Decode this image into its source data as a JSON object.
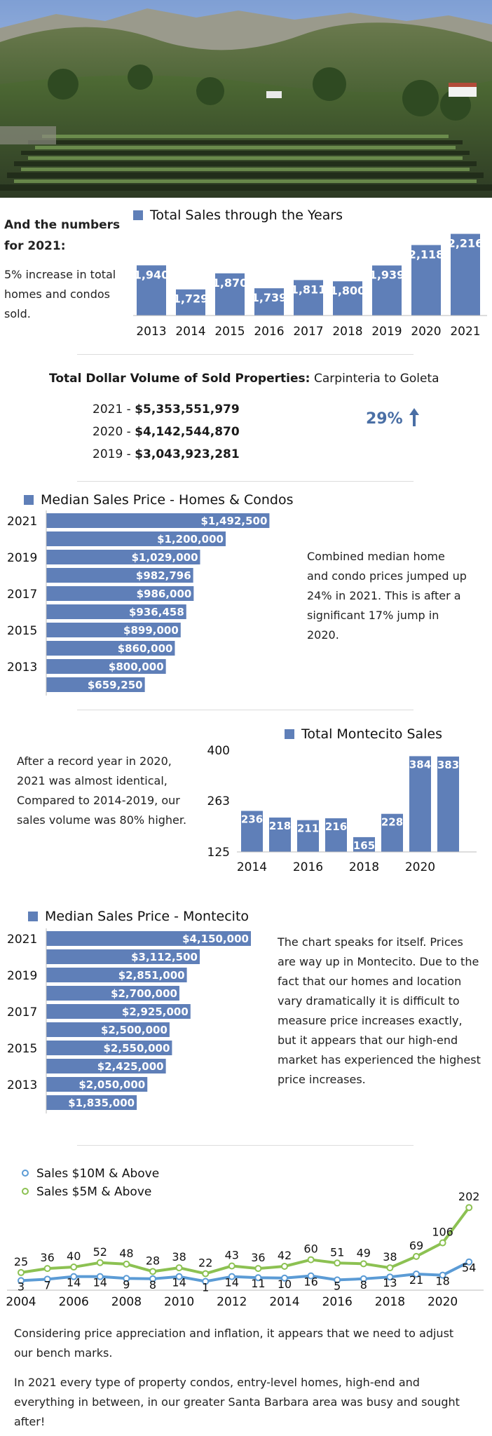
{
  "colors": {
    "bar": "#5f7fb8",
    "green": "#8cc152",
    "blue": "#5b9bd5",
    "up_arrow": "#4a6fa5"
  },
  "intro": {
    "heading": "And the numbers for 2021:",
    "body": "5% increase in total homes and condos sold."
  },
  "volume": {
    "title": "Total Dollar Volume of Sold Properties:",
    "rows": [
      {
        "year": "2021",
        "amount": "$5,353,551,979"
      },
      {
        "year": "2020",
        "amount": "$4,142,544,870"
      },
      {
        "year": "2019",
        "amount": "$3,043,923,281"
      }
    ],
    "region": "Carpinteria to Goleta",
    "change": "29%",
    "change_icon": "arrow-up-icon"
  },
  "median_note": "Combined median home and condo prices jumped up 24% in 2021. This is after a significant 17% jump in 2020.",
  "montecito_note": "After a record year in 2020, 2021 was almost identical, Compared to 2014-2019, our sales volume was 80% higher.",
  "montecito_median_note": "The chart speaks for itself. Prices are way up in Montecito.  Due to the fact that our homes and location vary dramatically it is difficult to measure price increases exactly, but it appears that our high-end market has experienced the highest price increases.",
  "footer": {
    "p1": "Considering price appreciation and inflation, it appears that we need to adjust our bench marks.",
    "p2": "In 2021 every type of property condos, entry-level homes, high-end and everything in between, in our greater Santa Barbara area was busy and sought after!"
  },
  "chart_data": [
    {
      "type": "bar",
      "title": "Total Sales through the Years",
      "categories": [
        "2013",
        "2014",
        "2015",
        "2016",
        "2017",
        "2018",
        "2019",
        "2020",
        "2021"
      ],
      "series": [
        {
          "name": "Total Sales through the Years",
          "values": [
            1940,
            1729,
            1870,
            1739,
            1811,
            1800,
            1939,
            2118,
            2216
          ]
        }
      ],
      "data_labels": [
        "1,940",
        "1,729",
        "1,870",
        "1,739",
        "1,811",
        "1,800",
        "1,939",
        "2,118",
        "2,216"
      ],
      "ylim": [
        1500,
        2250
      ]
    },
    {
      "type": "bar",
      "orientation": "horizontal",
      "title": "Median Sales Price - Homes & Condos",
      "categories": [
        "2021",
        "2020",
        "2019",
        "2018",
        "2017",
        "2016",
        "2015",
        "2014",
        "2013",
        "2012"
      ],
      "tick_labels": [
        "2021",
        "2019",
        "2017",
        "2015",
        "2013"
      ],
      "values": [
        1492500,
        1200000,
        1029000,
        982796,
        986000,
        936458,
        899000,
        860000,
        800000,
        659250
      ],
      "data_labels": [
        "$1,492,500",
        "$1,200,000",
        "$1,029,000",
        "$982,796",
        "$986,000",
        "$936,458",
        "$899,000",
        "$860,000",
        "$800,000",
        "$659,250"
      ],
      "xlim": [
        0,
        1500000
      ]
    },
    {
      "type": "bar",
      "title": "Total Montecito Sales",
      "categories": [
        "2014",
        "2015",
        "2016",
        "2017",
        "2018",
        "2019",
        "2020",
        "2021"
      ],
      "tick_labels": [
        "2014",
        "2016",
        "2018",
        "2020"
      ],
      "series": [
        {
          "name": "Total Montecito Sales",
          "values": [
            236,
            218,
            211,
            216,
            165,
            228,
            384,
            383
          ]
        }
      ],
      "y_ticks": [
        "400",
        "263",
        "125"
      ],
      "ylim": [
        125,
        400
      ]
    },
    {
      "type": "bar",
      "orientation": "horizontal",
      "title": "Median Sales Price - Montecito",
      "categories": [
        "2021",
        "2020",
        "2019",
        "2018",
        "2017",
        "2016",
        "2015",
        "2014",
        "2013",
        "2012"
      ],
      "tick_labels": [
        "2021",
        "2019",
        "2017",
        "2015",
        "2013"
      ],
      "values": [
        4150000,
        3112500,
        2851000,
        2700000,
        2925000,
        2500000,
        2550000,
        2425000,
        2050000,
        1835000
      ],
      "data_labels": [
        "$4,150,000",
        "$3,112,500",
        "$2,851,000",
        "$2,700,000",
        "$2,925,000",
        "$2,500,000",
        "$2,550,000",
        "$2,425,000",
        "$2,050,000",
        "$1,835,000"
      ],
      "xlim": [
        0,
        4150000
      ]
    },
    {
      "type": "line",
      "x": [
        2004,
        2005,
        2006,
        2007,
        2008,
        2009,
        2010,
        2011,
        2012,
        2013,
        2014,
        2015,
        2016,
        2017,
        2018,
        2019,
        2020,
        2021
      ],
      "tick_labels": [
        "2004",
        "2006",
        "2008",
        "2010",
        "2012",
        "2014",
        "2016",
        "2018",
        "2020"
      ],
      "series": [
        {
          "name": "Sales $10M & Above",
          "values": [
            3,
            7,
            14,
            14,
            9,
            8,
            14,
            1,
            14,
            11,
            10,
            16,
            5,
            8,
            13,
            21,
            18,
            54
          ]
        },
        {
          "name": "Sales $5M & Above",
          "values": [
            25,
            36,
            40,
            52,
            48,
            28,
            38,
            22,
            43,
            36,
            42,
            60,
            51,
            49,
            38,
            69,
            106,
            202
          ]
        }
      ],
      "ylim": [
        0,
        210
      ]
    }
  ]
}
